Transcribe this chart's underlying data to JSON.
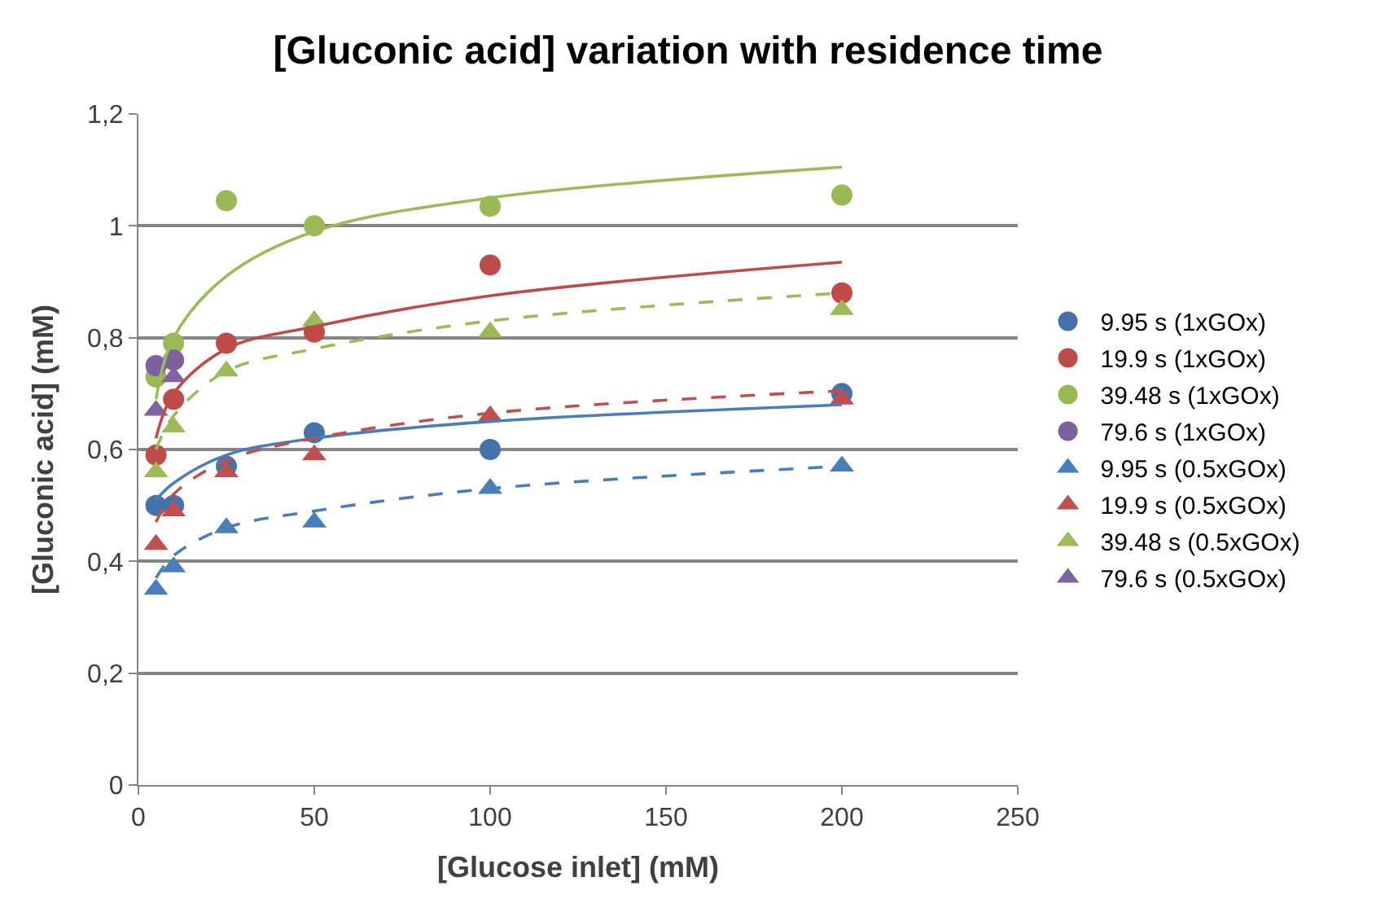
{
  "chart_data": {
    "type": "scatter",
    "title": "[Gluconic acid] variation with residence time",
    "xlabel": "[Glucose inlet] (mM)",
    "ylabel": "[Gluconic acid] (mM)",
    "x": [
      5,
      10,
      25,
      50,
      100,
      200
    ],
    "xlim": [
      0,
      250
    ],
    "xticks": [
      0,
      50,
      100,
      150,
      200,
      250
    ],
    "ylim": [
      0,
      1.2
    ],
    "yticks": [
      0,
      {
        "value": 0.2,
        "label": "0,2"
      },
      {
        "value": 0.4,
        "label": "0,4"
      },
      {
        "value": 0.6,
        "label": "0,6"
      },
      {
        "value": 0.8,
        "label": "0,8"
      },
      1,
      {
        "value": 1.2,
        "label": "1,2"
      }
    ],
    "grid": "y",
    "legend": "right",
    "series": [
      {
        "name": "9.95 s (1xGOx)",
        "color": "#4672aa",
        "marker": "circle",
        "values": [
          0.5,
          0.5,
          0.57,
          0.63,
          0.6,
          0.7
        ]
      },
      {
        "name": "19.9 s (1xGOx)",
        "color": "#be4b48",
        "marker": "circle",
        "values": [
          0.59,
          0.69,
          0.79,
          0.81,
          0.93,
          0.88
        ]
      },
      {
        "name": "39.48 s (1xGOx)",
        "color": "#98b954",
        "marker": "circle",
        "values": [
          0.73,
          0.79,
          1.045,
          1.0,
          1.035,
          1.055
        ]
      },
      {
        "name": "79.6 s (1xGOx)",
        "color": "#7d60a0",
        "marker": "circle",
        "values": [
          0.75,
          0.76,
          null,
          null,
          null,
          null
        ]
      },
      {
        "name": "9.95 s (0.5xGOx)",
        "color": "#4a7ebb",
        "marker": "triangle",
        "values": [
          0.35,
          0.39,
          0.46,
          0.47,
          0.53,
          0.57
        ]
      },
      {
        "name": "19.9 s (0.5xGOx)",
        "color": "#c0504d",
        "marker": "triangle",
        "values": [
          0.43,
          0.49,
          0.56,
          0.59,
          0.66,
          0.69
        ]
      },
      {
        "name": "39.48 s (0.5xGOx)",
        "color": "#9bbb59",
        "marker": "triangle",
        "values": [
          0.56,
          0.64,
          0.74,
          0.83,
          0.81,
          0.85
        ]
      },
      {
        "name": "79.6 s (0.5xGOx)",
        "color": "#8064a2",
        "marker": "triangle",
        "values": [
          0.67,
          0.73,
          null,
          null,
          null,
          null
        ]
      },
      {
        "type": "line",
        "color": "#4a7ebb",
        "line_style": "solid",
        "values": [
          0.51,
          0.54,
          0.59,
          0.62,
          0.65,
          0.68
        ]
      },
      {
        "type": "line",
        "color": "#be4b48",
        "line_style": "solid",
        "values": [
          0.62,
          0.7,
          0.78,
          0.82,
          0.875,
          0.935
        ]
      },
      {
        "type": "line",
        "color": "#9bbb59",
        "line_style": "solid",
        "values": [
          0.69,
          0.8,
          0.91,
          0.99,
          1.05,
          1.105
        ]
      },
      {
        "type": "line",
        "color": "#4a7ebb",
        "line_style": "dashed",
        "values": [
          0.37,
          0.41,
          0.46,
          0.49,
          0.53,
          0.57
        ]
      },
      {
        "type": "line",
        "color": "#c0504d",
        "line_style": "dashed",
        "values": [
          0.47,
          0.52,
          0.58,
          0.62,
          0.665,
          0.705
        ]
      },
      {
        "type": "line",
        "color": "#9bbb59",
        "line_style": "dashed",
        "values": [
          0.6,
          0.66,
          0.74,
          0.78,
          0.83,
          0.88
        ]
      }
    ]
  }
}
